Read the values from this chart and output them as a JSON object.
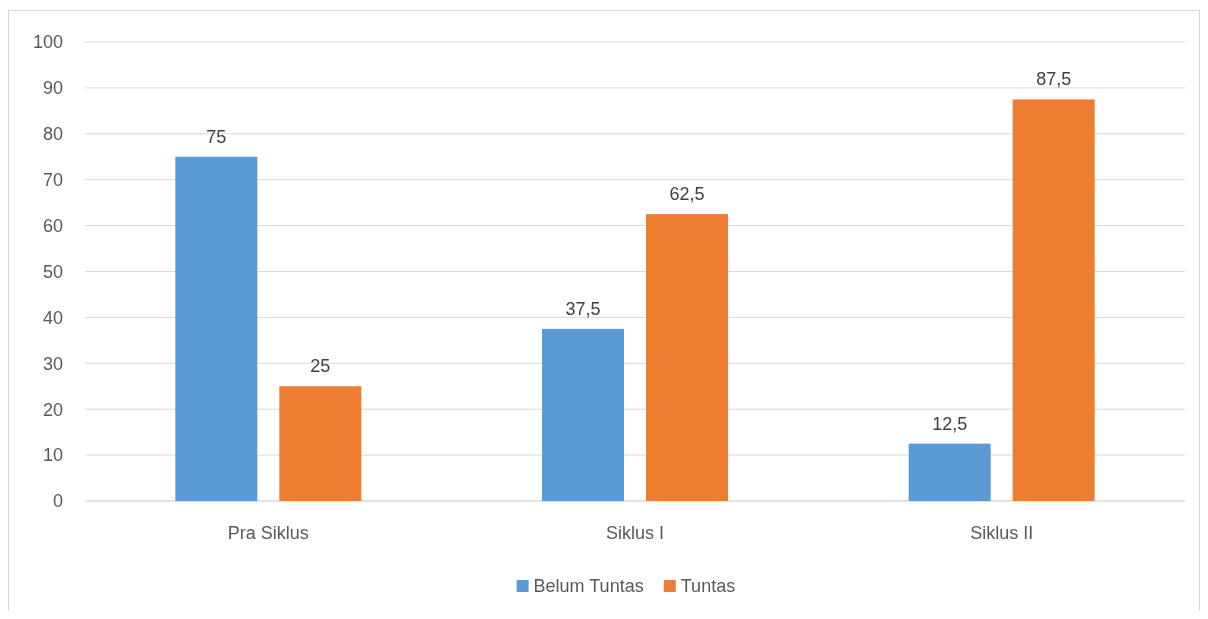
{
  "chart_data": {
    "type": "bar",
    "categories": [
      "Pra Siklus",
      "Siklus I",
      "Siklus II"
    ],
    "series": [
      {
        "name": "Belum Tuntas",
        "color": "#5b9bd5",
        "values": [
          75,
          37.5,
          12.5
        ],
        "value_labels": [
          "75",
          "37,5",
          "12,5"
        ]
      },
      {
        "name": "Tuntas",
        "color": "#ed7d31",
        "values": [
          25,
          62.5,
          87.5
        ],
        "value_labels": [
          "25",
          "62,5",
          "87,5"
        ]
      }
    ],
    "ylim": [
      0,
      100
    ],
    "yticks": [
      0,
      10,
      20,
      30,
      40,
      50,
      60,
      70,
      80,
      90,
      100
    ],
    "grid": "y",
    "legend": "bottom"
  }
}
